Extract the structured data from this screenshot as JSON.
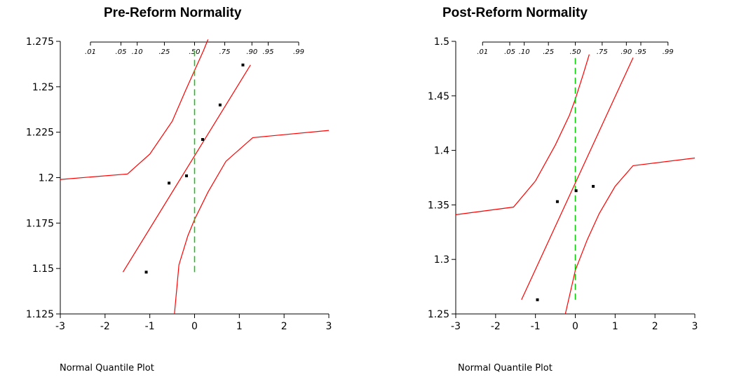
{
  "colors": {
    "reference_line": "#ff0000",
    "confidence_band": "#ff0000",
    "median_line": "#00cc00",
    "points": "#000000",
    "axis": "#000000"
  },
  "chart_data": [
    {
      "type": "scatter",
      "title": "Pre-Reform Normality",
      "xlabel": "Normal Quantile Plot",
      "ylabel": "",
      "xlim": [
        -3,
        3
      ],
      "ylim": [
        1.125,
        1.275
      ],
      "x_ticks": [
        "-3",
        "-2",
        "-1",
        "0",
        "1",
        "2",
        "3"
      ],
      "y_ticks": [
        "1.125",
        "1.15",
        "1.175",
        "1.2",
        "1.225",
        "1.25",
        "1.275"
      ],
      "probability_ticks": [
        ".01",
        ".05",
        ".10",
        ".25",
        ".50",
        ".75",
        ".90",
        ".95",
        ".99"
      ],
      "points": [
        {
          "x": -1.08,
          "y": 1.148
        },
        {
          "x": -0.57,
          "y": 1.197
        },
        {
          "x": -0.18,
          "y": 1.201
        },
        {
          "x": 0.18,
          "y": 1.221
        },
        {
          "x": 0.57,
          "y": 1.24
        },
        {
          "x": 1.08,
          "y": 1.262
        }
      ],
      "fit_line": {
        "x": [
          -1.6,
          1.25
        ],
        "y": [
          1.148,
          1.262
        ]
      },
      "upper_band": [
        [
          -3,
          1.199
        ],
        [
          -1.5,
          1.202
        ],
        [
          -1.0,
          1.213
        ],
        [
          -0.5,
          1.231
        ],
        [
          -0.2,
          1.248
        ],
        [
          0.0,
          1.259
        ],
        [
          0.2,
          1.27
        ],
        [
          0.3,
          1.276
        ]
      ],
      "lower_band": [
        [
          -0.45,
          1.125
        ],
        [
          -0.35,
          1.152
        ],
        [
          -0.15,
          1.168
        ],
        [
          0.0,
          1.177
        ],
        [
          0.3,
          1.192
        ],
        [
          0.7,
          1.209
        ],
        [
          1.3,
          1.222
        ],
        [
          3,
          1.226
        ]
      ],
      "median_line": {
        "x": 0,
        "y": [
          1.148,
          1.27
        ]
      }
    },
    {
      "type": "scatter",
      "title": "Post-Reform Normality",
      "xlabel": "Normal Quantile Plot",
      "ylabel": "",
      "xlim": [
        -3,
        3
      ],
      "ylim": [
        1.25,
        1.5
      ],
      "x_ticks": [
        "-3",
        "-2",
        "-1",
        "0",
        "1",
        "2",
        "3"
      ],
      "y_ticks": [
        "1.25",
        "1.3",
        "1.35",
        "1.4",
        "1.45",
        "1.5"
      ],
      "probability_ticks": [
        ".01",
        ".05",
        ".10",
        ".25",
        ".50",
        ".75",
        ".90",
        ".95",
        ".99"
      ],
      "points": [
        {
          "x": -0.95,
          "y": 1.263
        },
        {
          "x": -0.45,
          "y": 1.353
        },
        {
          "x": 0.02,
          "y": 1.363
        },
        {
          "x": 0.45,
          "y": 1.367
        }
      ],
      "fit_line": {
        "x": [
          -1.35,
          1.45
        ],
        "y": [
          1.263,
          1.485
        ]
      },
      "upper_band": [
        [
          -3,
          1.341
        ],
        [
          -1.55,
          1.348
        ],
        [
          -1.0,
          1.372
        ],
        [
          -0.5,
          1.405
        ],
        [
          -0.15,
          1.432
        ],
        [
          0.0,
          1.447
        ],
        [
          0.2,
          1.47
        ],
        [
          0.35,
          1.488
        ]
      ],
      "lower_band": [
        [
          -0.25,
          1.25
        ],
        [
          -0.05,
          1.282
        ],
        [
          0.0,
          1.29
        ],
        [
          0.3,
          1.318
        ],
        [
          0.6,
          1.342
        ],
        [
          1.0,
          1.367
        ],
        [
          1.45,
          1.386
        ],
        [
          3,
          1.393
        ]
      ],
      "median_line": {
        "x": 0,
        "y": [
          1.263,
          1.485
        ]
      }
    }
  ]
}
